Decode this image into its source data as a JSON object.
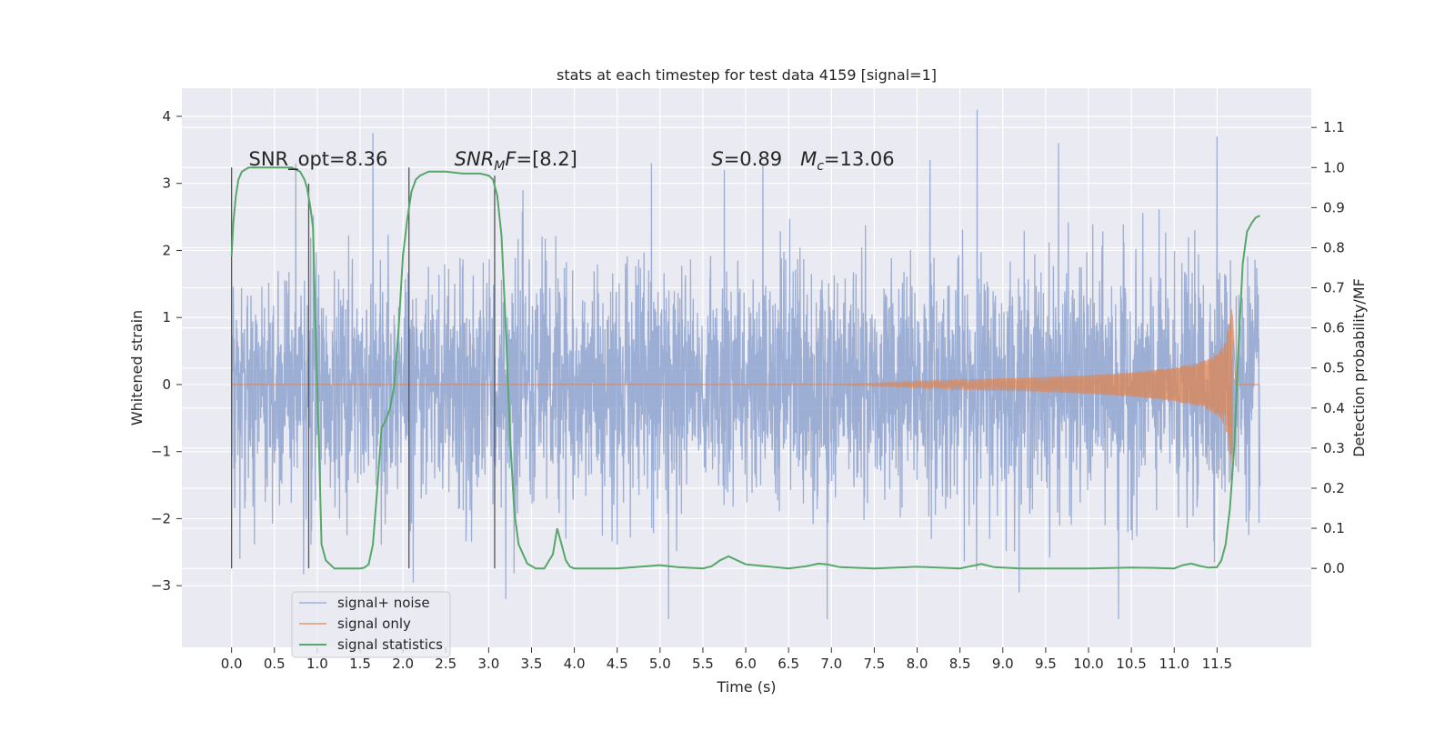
{
  "chart_data": {
    "type": "line",
    "title": "stats at each timestep for test data 4159 [signal=1]",
    "xlabel": "Time (s)",
    "ylabel": "Whitened strain",
    "y2label": "Detection probability/MF",
    "xlim": [
      -0.58,
      12.6
    ],
    "ylim": [
      -3.92,
      4.42
    ],
    "y2lim": [
      -0.197,
      1.198
    ],
    "x_ticks": [
      0.0,
      0.5,
      1.0,
      1.5,
      2.0,
      2.5,
      3.0,
      3.5,
      4.0,
      4.5,
      5.0,
      5.5,
      6.0,
      6.5,
      7.0,
      7.5,
      8.0,
      8.5,
      9.0,
      9.5,
      10.0,
      10.5,
      11.0,
      11.5
    ],
    "x_tick_labels": [
      "0.0",
      "0.5",
      "1.0",
      "1.5",
      "2.0",
      "2.5",
      "3.0",
      "3.5",
      "4.0",
      "4.5",
      "5.0",
      "5.5",
      "6.0",
      "6.5",
      "7.0",
      "7.5",
      "8.0",
      "8.5",
      "9.0",
      "9.5",
      "10.0",
      "10.5",
      "11.0",
      "11.5"
    ],
    "y_ticks": [
      4,
      3,
      2,
      1,
      0,
      -1,
      -2,
      -3
    ],
    "y_tick_labels": [
      "4",
      "3",
      "2",
      "1",
      "0",
      "−1",
      "−2",
      "−3"
    ],
    "y2_ticks": [
      1.1,
      1.0,
      0.9,
      0.8,
      0.7,
      0.6,
      0.5,
      0.4,
      0.3,
      0.2,
      0.1,
      0.0
    ],
    "y2_tick_labels": [
      "1.1",
      "1.0",
      "0.9",
      "0.8",
      "0.7",
      "0.6",
      "0.5",
      "0.4",
      "0.3",
      "0.2",
      "0.1",
      "0.0"
    ],
    "grid": true,
    "legend_position": "lower-left",
    "colors": {
      "background": "#eaeaf2",
      "grid": "#ffffff",
      "noise": "#8ea3cf",
      "signal": "#dd8452",
      "stats": "#55a868",
      "marker": "#555555"
    },
    "series": [
      {
        "name": "signal+ noise",
        "color": "#8ea3cf",
        "axis": "left",
        "x_range": [
          0.0,
          12.0
        ],
        "approx_envelope": {
          "typical_abs": 1.5,
          "max_positive": 4.1,
          "max_negative": -3.5
        },
        "notable_peaks": [
          {
            "x": 0.75,
            "y": 3.3
          },
          {
            "x": 1.65,
            "y": 3.75
          },
          {
            "x": 3.4,
            "y": 2.9
          },
          {
            "x": 4.9,
            "y": 3.3
          },
          {
            "x": 5.75,
            "y": 3.2
          },
          {
            "x": 6.2,
            "y": 3.3
          },
          {
            "x": 8.15,
            "y": 3.35
          },
          {
            "x": 8.7,
            "y": 4.1
          },
          {
            "x": 9.65,
            "y": 3.6
          },
          {
            "x": 11.5,
            "y": 3.7
          },
          {
            "x": 3.2,
            "y": -3.2
          },
          {
            "x": 5.1,
            "y": -3.5
          },
          {
            "x": 6.95,
            "y": -3.5
          },
          {
            "x": 10.35,
            "y": -3.5
          }
        ]
      },
      {
        "name": "signal only",
        "color": "#dd8452",
        "axis": "left",
        "envelope_x": [
          0.0,
          7.0,
          7.5,
          8.0,
          8.5,
          9.0,
          9.5,
          10.0,
          10.5,
          11.0,
          11.3,
          11.5,
          11.6,
          11.65,
          11.67,
          11.72,
          12.0
        ],
        "envelope_y": [
          0.0,
          0.0,
          0.02,
          0.05,
          0.07,
          0.09,
          0.11,
          0.14,
          0.18,
          0.25,
          0.33,
          0.45,
          0.65,
          0.95,
          1.25,
          0.0,
          0.0
        ]
      },
      {
        "name": "signal statistics",
        "color": "#55a868",
        "axis": "right",
        "x": [
          0.0,
          0.02,
          0.05,
          0.08,
          0.12,
          0.2,
          0.3,
          0.5,
          0.7,
          0.8,
          0.85,
          0.88,
          0.92,
          0.95,
          0.98,
          1.02,
          1.05,
          1.1,
          1.2,
          1.4,
          1.5,
          1.55,
          1.6,
          1.65,
          1.7,
          1.75,
          1.8,
          1.85,
          1.9,
          1.95,
          2.0,
          2.05,
          2.1,
          2.15,
          2.2,
          2.3,
          2.5,
          2.7,
          2.9,
          3.0,
          3.05,
          3.1,
          3.15,
          3.2,
          3.25,
          3.3,
          3.35,
          3.45,
          3.55,
          3.65,
          3.75,
          3.8,
          3.85,
          3.9,
          3.95,
          4.0,
          4.1,
          4.5,
          5.0,
          5.2,
          5.5,
          5.6,
          5.7,
          5.8,
          5.9,
          6.0,
          6.2,
          6.5,
          6.7,
          6.85,
          6.95,
          7.1,
          7.5,
          8.0,
          8.5,
          8.75,
          8.9,
          9.2,
          9.5,
          10.0,
          10.5,
          10.8,
          11.0,
          11.1,
          11.2,
          11.3,
          11.4,
          11.5,
          11.55,
          11.6,
          11.65,
          11.7,
          11.75,
          11.8,
          11.85,
          11.9,
          11.95,
          12.0
        ],
        "y": [
          0.78,
          0.86,
          0.93,
          0.97,
          0.99,
          1.0,
          1.0,
          1.0,
          1.0,
          0.99,
          0.97,
          0.95,
          0.9,
          0.85,
          0.6,
          0.3,
          0.06,
          0.02,
          0.0,
          0.0,
          0.0,
          0.002,
          0.01,
          0.06,
          0.2,
          0.35,
          0.37,
          0.4,
          0.46,
          0.6,
          0.78,
          0.87,
          0.94,
          0.97,
          0.98,
          0.99,
          0.99,
          0.985,
          0.985,
          0.98,
          0.97,
          0.93,
          0.83,
          0.6,
          0.33,
          0.14,
          0.06,
          0.012,
          0.0,
          0.0,
          0.035,
          0.1,
          0.06,
          0.02,
          0.004,
          0.0,
          0.0,
          0.0,
          0.008,
          0.003,
          0.0,
          0.005,
          0.02,
          0.03,
          0.02,
          0.01,
          0.006,
          0.0,
          0.005,
          0.012,
          0.01,
          0.003,
          0.0,
          0.004,
          0.0,
          0.011,
          0.003,
          0.0,
          0.0,
          0.0,
          0.002,
          0.001,
          0.0,
          0.008,
          0.012,
          0.006,
          0.002,
          0.003,
          0.02,
          0.06,
          0.15,
          0.3,
          0.55,
          0.76,
          0.84,
          0.86,
          0.875,
          0.88
        ]
      }
    ],
    "marker_lines": [
      {
        "x": 0.0,
        "y2_bottom": 0.0,
        "y2_top": 1.0
      },
      {
        "x": 0.9,
        "y2_bottom": 0.0,
        "y2_top": 0.96
      },
      {
        "x": 2.07,
        "y2_bottom": 0.0,
        "y2_top": 1.0
      },
      {
        "x": 3.07,
        "y2_bottom": 0.0,
        "y2_top": 0.98
      }
    ],
    "annotations": [
      {
        "text": "SNR_opt=8.36",
        "x": 0.2,
        "y2": 1.005
      },
      {
        "text": "SNR_MF=[8.2]",
        "x": 2.6,
        "y2": 1.005
      },
      {
        "text": "S=0.89   M_c=13.06",
        "x": 5.6,
        "y2": 1.005
      }
    ]
  }
}
